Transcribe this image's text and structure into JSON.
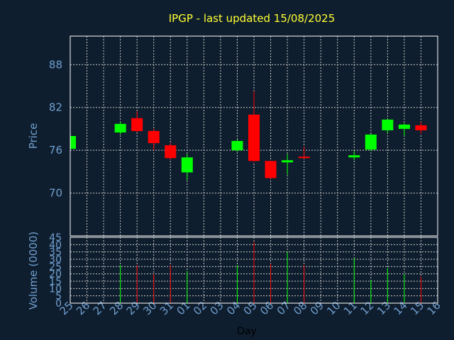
{
  "chart_data": [
    {
      "type": "candlestick",
      "title": "IPGP - last updated 15/08/2025",
      "ylabel": "Price",
      "ylim": [
        64,
        92
      ],
      "yticks": [
        70,
        76,
        82,
        88
      ],
      "grid": true,
      "colors": {
        "up": "#00ff00",
        "down": "#ff0000",
        "grid": "#c8c8c8",
        "background": "#0f1e2e",
        "title": "#ffff33",
        "axis_text": "#6f9fcf"
      },
      "categories": [
        "25",
        "26",
        "27",
        "28",
        "29",
        "30",
        "31",
        "01",
        "02",
        "03",
        "04",
        "05",
        "06",
        "07",
        "08",
        "09",
        "10",
        "11",
        "12",
        "13",
        "14",
        "15",
        "16"
      ],
      "candles": [
        {
          "x": "25",
          "open": 76.2,
          "close": 78.0,
          "high": 78.2,
          "low": 76.0
        },
        {
          "x": "28",
          "open": 78.5,
          "close": 79.7,
          "high": 80.0,
          "low": 78.2
        },
        {
          "x": "29",
          "open": 80.5,
          "close": 78.7,
          "high": 81.5,
          "low": 78.5
        },
        {
          "x": "30",
          "open": 78.7,
          "close": 77.0,
          "high": 79.0,
          "low": 76.0
        },
        {
          "x": "31",
          "open": 76.7,
          "close": 74.9,
          "high": 77.0,
          "low": 74.7
        },
        {
          "x": "01",
          "open": 72.9,
          "close": 75.0,
          "high": 75.5,
          "low": 71.8
        },
        {
          "x": "04",
          "open": 76.0,
          "close": 77.3,
          "high": 77.5,
          "low": 75.8
        },
        {
          "x": "05",
          "open": 81.0,
          "close": 74.5,
          "high": 84.3,
          "low": 74.3
        },
        {
          "x": "06",
          "open": 74.5,
          "close": 72.1,
          "high": 74.5,
          "low": 72.0
        },
        {
          "x": "07",
          "open": 74.3,
          "close": 74.6,
          "high": 75.5,
          "low": 72.6
        },
        {
          "x": "08",
          "open": 75.1,
          "close": 74.9,
          "high": 76.5,
          "low": 74.8
        },
        {
          "x": "11",
          "open": 75.0,
          "close": 75.3,
          "high": 75.9,
          "low": 74.6
        },
        {
          "x": "12",
          "open": 76.1,
          "close": 78.2,
          "high": 78.3,
          "low": 75.9
        },
        {
          "x": "13",
          "open": 78.8,
          "close": 80.3,
          "high": 80.4,
          "low": 78.4
        },
        {
          "x": "14",
          "open": 79.0,
          "close": 79.6,
          "high": 79.8,
          "low": 78.0
        },
        {
          "x": "15",
          "open": 79.5,
          "close": 78.8,
          "high": 80.0,
          "low": 78.3
        }
      ]
    },
    {
      "type": "bar",
      "xlabel": "Day",
      "ylabel": "Volume (0000)",
      "ylim": [
        0,
        45
      ],
      "yticks": [
        0,
        5,
        10,
        15,
        20,
        25,
        30,
        35,
        40,
        45
      ],
      "grid": true,
      "categories": [
        "25",
        "26",
        "27",
        "28",
        "29",
        "30",
        "31",
        "01",
        "02",
        "03",
        "04",
        "05",
        "06",
        "07",
        "08",
        "09",
        "10",
        "11",
        "12",
        "13",
        "14",
        "15",
        "16"
      ],
      "bars": [
        {
          "x": "28",
          "value": 26,
          "direction": "up"
        },
        {
          "x": "29",
          "value": 26,
          "direction": "down"
        },
        {
          "x": "30",
          "value": 20,
          "direction": "down"
        },
        {
          "x": "31",
          "value": 26,
          "direction": "down"
        },
        {
          "x": "01",
          "value": 22,
          "direction": "up"
        },
        {
          "x": "04",
          "value": 26,
          "direction": "up"
        },
        {
          "x": "05",
          "value": 42,
          "direction": "down"
        },
        {
          "x": "06",
          "value": 27,
          "direction": "down"
        },
        {
          "x": "07",
          "value": 35,
          "direction": "up"
        },
        {
          "x": "08",
          "value": 26,
          "direction": "down"
        },
        {
          "x": "11",
          "value": 31,
          "direction": "up"
        },
        {
          "x": "12",
          "value": 16,
          "direction": "up"
        },
        {
          "x": "13",
          "value": 24,
          "direction": "up"
        },
        {
          "x": "14",
          "value": 20,
          "direction": "up"
        },
        {
          "x": "15",
          "value": 18,
          "direction": "down"
        }
      ]
    }
  ]
}
